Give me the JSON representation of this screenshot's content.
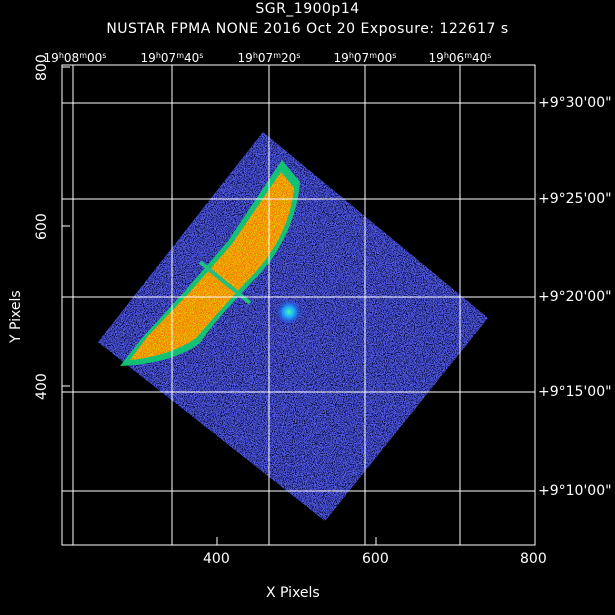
{
  "header": {
    "object_name": "SGR_1900p14",
    "line2": "NUSTAR FPMA NONE   2016 Oct 20    Exposure: 122617 s"
  },
  "axes": {
    "x_label": "X Pixels",
    "y_label": "Y Pixels",
    "x_ticks": [
      "400",
      "600",
      "800"
    ],
    "y_ticks": [
      "400",
      "600",
      "800"
    ],
    "ra_ticks": [
      {
        "h": "19",
        "m": "08",
        "s": "00"
      },
      {
        "h": "19",
        "m": "07",
        "s": "40"
      },
      {
        "h": "19",
        "m": "07",
        "s": "20"
      },
      {
        "h": "19",
        "m": "07",
        "s": "00"
      },
      {
        "h": "19",
        "m": "06",
        "s": "40"
      }
    ],
    "dec_ticks": [
      "+9°30'00\"",
      "+9°25'00\"",
      "+9°20'00\"",
      "+9°15'00\"",
      "+9°10'00\""
    ]
  },
  "image": {
    "colormap": [
      "#00003c",
      "#2030c8",
      "#20a0ff",
      "#00ff80",
      "#ffff00",
      "#ff8000",
      "#ff0000"
    ],
    "background": "#000000",
    "grid_color": "#ffffff"
  }
}
